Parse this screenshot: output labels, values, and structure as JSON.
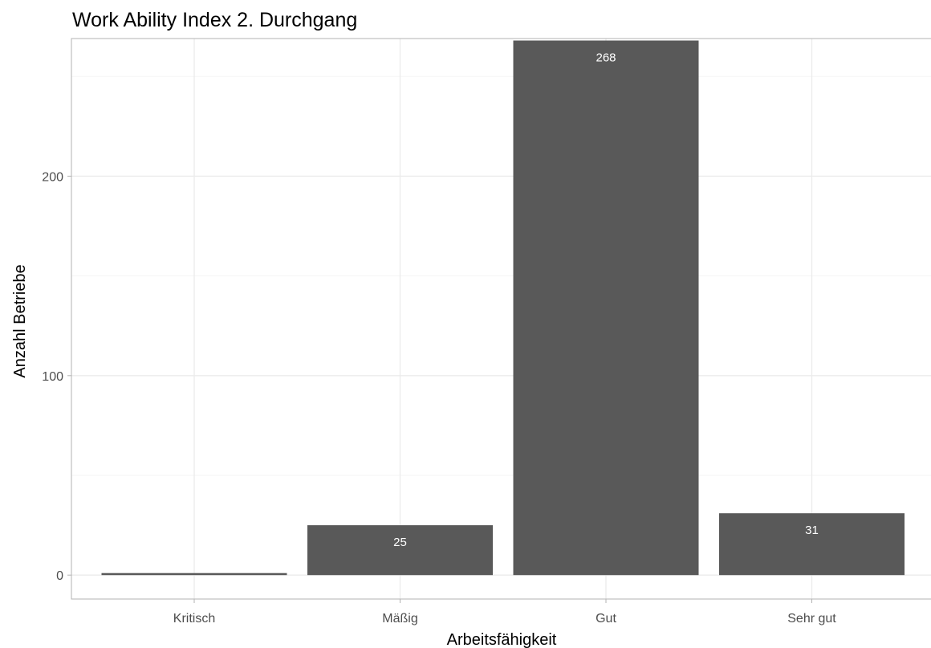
{
  "colors": {
    "bar": "#595959",
    "grid_major": "#ebebeb",
    "grid_minor": "#f5f5f5",
    "panel_border": "#b3b3b3",
    "tick": "#4d4d4d",
    "bar_label": "#ffffff"
  },
  "chart_data": {
    "type": "bar",
    "title": "Work Ability Index 2. Durchgang",
    "xlabel": "Arbeitsfähigkeit",
    "ylabel": "Anzahl Betriebe",
    "categories": [
      "Kritisch",
      "Mäßig",
      "Gut",
      "Sehr gut"
    ],
    "values": [
      1,
      25,
      268,
      31
    ],
    "data_labels": [
      "",
      "25",
      "268",
      "31"
    ],
    "ylim": [
      -12,
      269
    ],
    "yticks": [
      0,
      100,
      200
    ],
    "ytick_labels": [
      "0",
      "100",
      "200"
    ],
    "y_minor_ticks": [
      50,
      150,
      250
    ],
    "grid": true,
    "legend": "none"
  }
}
